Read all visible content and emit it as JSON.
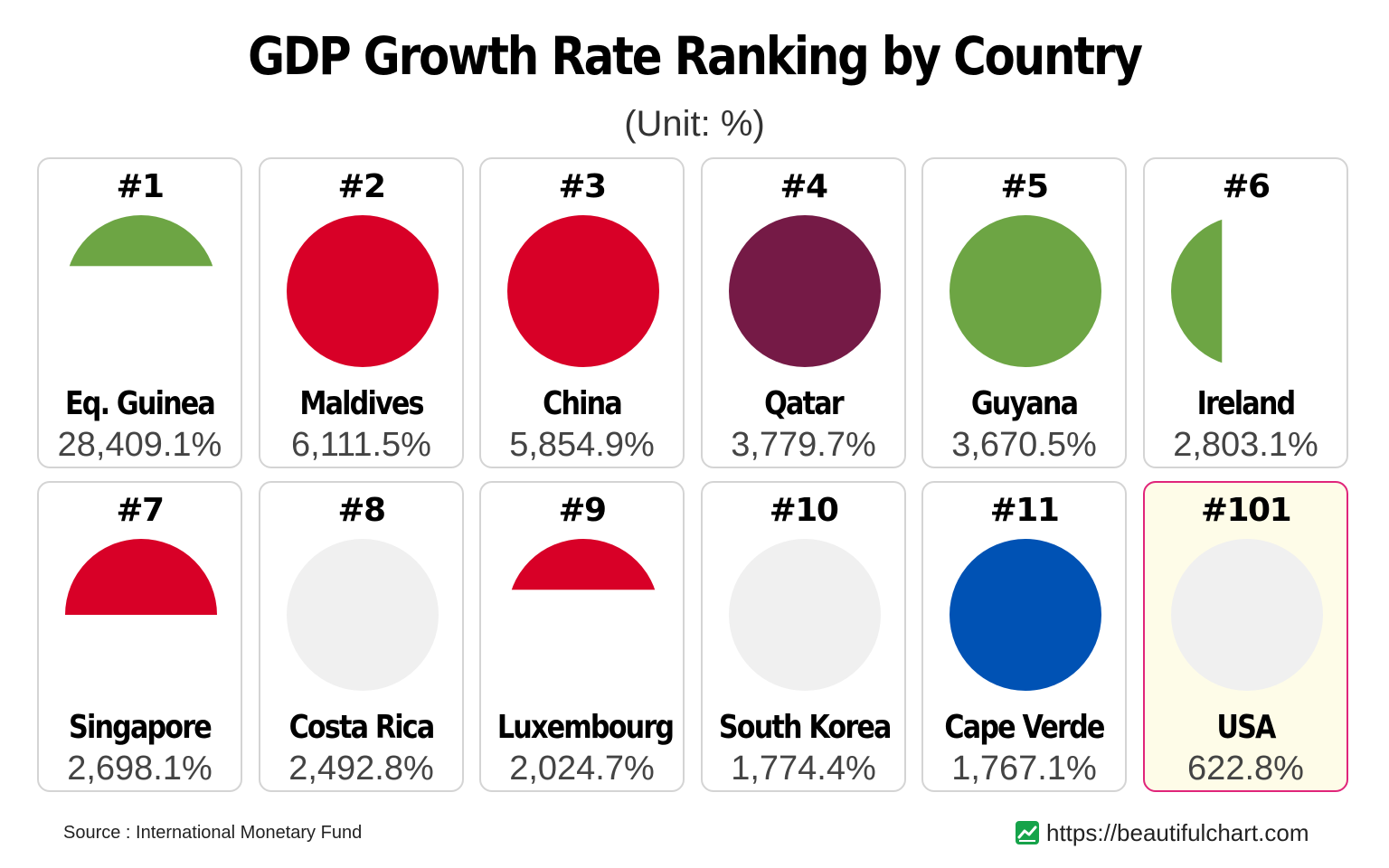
{
  "title": "GDP Growth Rate Ranking by Country",
  "subtitle": "(Unit: %)",
  "source": "Source : International Monetary Fund",
  "website": "https://beautifulchart.com",
  "colors": {
    "highlight_border": "#e0257a",
    "highlight_bg": "#fefce8",
    "card_border": "#d4d4d4",
    "logo": "#16a34a"
  },
  "chart_data": {
    "type": "table",
    "title": "GDP Growth Rate Ranking by Country",
    "unit": "(Unit: %)",
    "columns": [
      "rank",
      "country",
      "value"
    ],
    "rows": [
      {
        "rank": "#1",
        "country": "Eq. Guinea",
        "value": 28409.1,
        "label": "28,409.1%",
        "flag": "equatorial-guinea-flag-icon"
      },
      {
        "rank": "#2",
        "country": "Maldives",
        "value": 6111.5,
        "label": "6,111.5%",
        "flag": "maldives-flag-icon"
      },
      {
        "rank": "#3",
        "country": "China",
        "value": 5854.9,
        "label": "5,854.9%",
        "flag": "china-flag-icon"
      },
      {
        "rank": "#4",
        "country": "Qatar",
        "value": 3779.7,
        "label": "3,779.7%",
        "flag": "qatar-flag-icon"
      },
      {
        "rank": "#5",
        "country": "Guyana",
        "value": 3670.5,
        "label": "3,670.5%",
        "flag": "guyana-flag-icon"
      },
      {
        "rank": "#6",
        "country": "Ireland",
        "value": 2803.1,
        "label": "2,803.1%",
        "flag": "ireland-flag-icon"
      },
      {
        "rank": "#7",
        "country": "Singapore",
        "value": 2698.1,
        "label": "2,698.1%",
        "flag": "singapore-flag-icon"
      },
      {
        "rank": "#8",
        "country": "Costa Rica",
        "value": 2492.8,
        "label": "2,492.8%",
        "flag": "costa-rica-flag-icon"
      },
      {
        "rank": "#9",
        "country": "Luxembourg",
        "value": 2024.7,
        "label": "2,024.7%",
        "flag": "luxembourg-flag-icon"
      },
      {
        "rank": "#10",
        "country": "South Korea",
        "value": 1774.4,
        "label": "1,774.4%",
        "flag": "south-korea-flag-icon"
      },
      {
        "rank": "#11",
        "country": "Cape Verde",
        "value": 1767.1,
        "label": "1,767.1%",
        "flag": "cape-verde-flag-icon"
      },
      {
        "rank": "#101",
        "country": "USA",
        "value": 622.8,
        "label": "622.8%",
        "flag": "usa-flag-icon",
        "highlighted": true
      }
    ]
  }
}
